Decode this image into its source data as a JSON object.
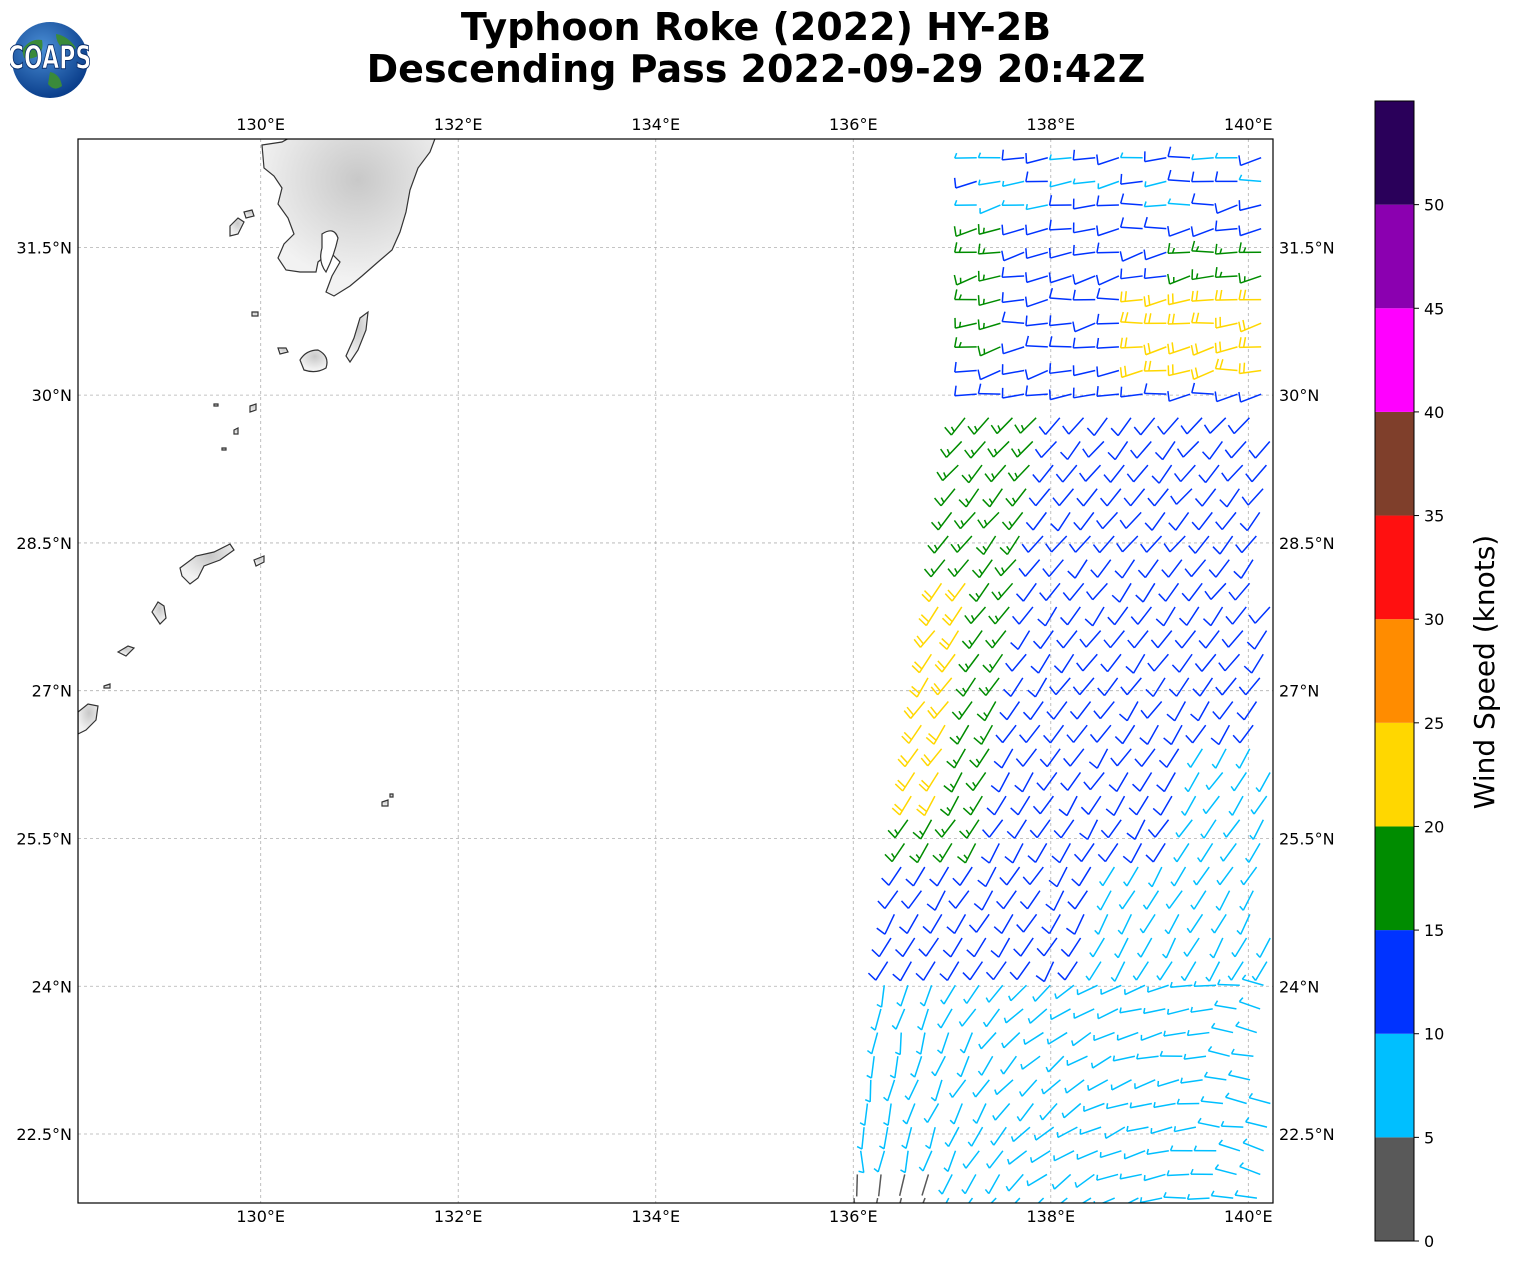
{
  "title": {
    "line1": "Typhoon Roke (2022) HY-2B",
    "line2": "Descending Pass 2022-09-29 20:42Z"
  },
  "logo": {
    "text": "COAPS",
    "icon": "globe-logo-icon"
  },
  "map": {
    "lon_range": [
      128.15,
      140.25
    ],
    "lat_range": [
      21.8,
      32.6
    ],
    "lon_ticks": [
      {
        "value": 130,
        "label": "130°E"
      },
      {
        "value": 132,
        "label": "132°E"
      },
      {
        "value": 134,
        "label": "134°E"
      },
      {
        "value": 136,
        "label": "136°E"
      },
      {
        "value": 138,
        "label": "138°E"
      },
      {
        "value": 140,
        "label": "140°E"
      }
    ],
    "lat_ticks": [
      {
        "value": 31.5,
        "label": "31.5°N"
      },
      {
        "value": 30,
        "label": "30°N"
      },
      {
        "value": 28.5,
        "label": "28.5°N"
      },
      {
        "value": 27,
        "label": "27°N"
      },
      {
        "value": 25.5,
        "label": "25.5°N"
      },
      {
        "value": 24,
        "label": "24°N"
      },
      {
        "value": 22.5,
        "label": "22.5°N"
      }
    ],
    "gridlines": true
  },
  "colorbar": {
    "label": "Wind Speed (knots)",
    "ticks": [
      "0",
      "5",
      "10",
      "15",
      "20",
      "25",
      "30",
      "35",
      "40",
      "45",
      "50"
    ],
    "bins": [
      {
        "min": 0,
        "max": 5,
        "color": "#595959"
      },
      {
        "min": 5,
        "max": 10,
        "color": "#00bfff"
      },
      {
        "min": 10,
        "max": 15,
        "color": "#0033ff"
      },
      {
        "min": 15,
        "max": 20,
        "color": "#008c00"
      },
      {
        "min": 20,
        "max": 25,
        "color": "#ffd700"
      },
      {
        "min": 25,
        "max": 30,
        "color": "#ff8c00"
      },
      {
        "min": 30,
        "max": 35,
        "color": "#ff1010"
      },
      {
        "min": 35,
        "max": 40,
        "color": "#7f3f2b"
      },
      {
        "min": 40,
        "max": 45,
        "color": "#ff00ff"
      },
      {
        "min": 45,
        "max": 50,
        "color": "#8b00b0"
      },
      {
        "min": 50,
        "max": 55,
        "color": "#2a005a"
      }
    ]
  },
  "colors": {
    "coast": "#333333",
    "grid": "#b0b0b0"
  }
}
